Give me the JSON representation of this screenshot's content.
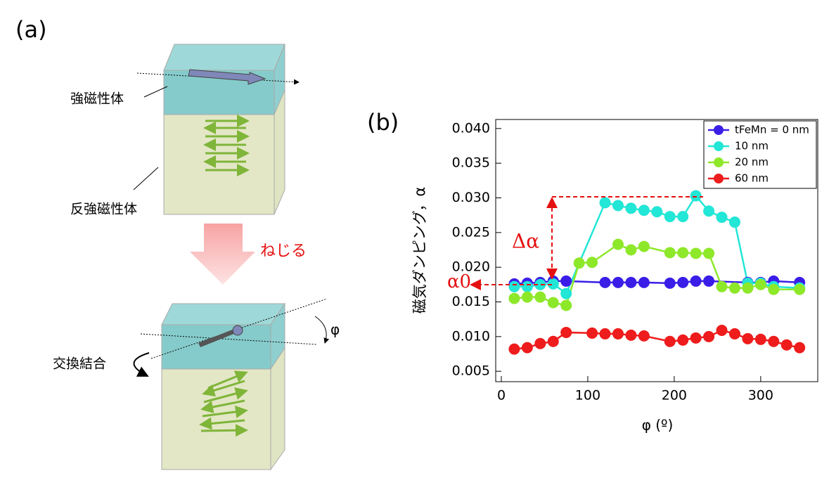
{
  "panel_a": {
    "label": "(a)",
    "ferromagnet": "強磁性体",
    "antiferromagnet": "反強磁性体",
    "twist": "ねじる",
    "exchange_coupling": "交換結合",
    "angle": "φ"
  },
  "chart_data": {
    "type": "line",
    "panel_label": "(b)",
    "xlabel": "φ (º)",
    "ylabel": "磁気ダンピング，α",
    "annotations": [
      "Δα",
      "α0"
    ],
    "legend": "upper right",
    "grid": false,
    "xlim": [
      -6.5,
      366
    ],
    "xticks": [
      0,
      100,
      200,
      300
    ],
    "ylim": [
      0.0035,
      0.0413
    ],
    "yticks": [
      0.005,
      {
        "value": 0.01,
        "label": "0.010"
      },
      0.015,
      {
        "value": 0.02,
        "label": "0.020"
      },
      0.025,
      {
        "value": 0.03,
        "label": "0.030"
      },
      0.035,
      {
        "value": 0.04,
        "label": "0.040"
      }
    ],
    "series": [
      {
        "name": "tFeMn = 0 nm",
        "color": "#3a1ee8",
        "x": [
          15,
          30,
          45,
          60,
          75,
          120,
          135,
          150,
          165,
          195,
          210,
          225,
          240,
          285,
          300,
          315,
          345
        ],
        "values": [
          0.0176,
          0.0177,
          0.0178,
          0.018,
          0.018,
          0.0178,
          0.0178,
          0.0178,
          0.0178,
          0.0177,
          0.0178,
          0.018,
          0.018,
          0.0178,
          0.0178,
          0.018,
          0.0178
        ]
      },
      {
        "name": "10 nm",
        "color": "#22e6d6",
        "x": [
          15,
          30,
          45,
          60,
          75,
          120,
          135,
          150,
          165,
          180,
          195,
          210,
          225,
          240,
          255,
          270,
          285,
          300,
          315,
          345
        ],
        "values": [
          0.0172,
          0.0172,
          0.0175,
          0.0176,
          0.0162,
          0.0293,
          0.0289,
          0.0285,
          0.0282,
          0.028,
          0.0273,
          0.0273,
          0.0303,
          0.0281,
          0.0272,
          0.0265,
          0.0177,
          0.0177,
          0.0172,
          0.017
        ]
      },
      {
        "name": "20 nm",
        "color": "#8ee82a",
        "x": [
          15,
          30,
          45,
          60,
          75,
          90,
          105,
          135,
          150,
          165,
          195,
          210,
          225,
          240,
          255,
          270,
          285,
          300,
          315,
          345
        ],
        "values": [
          0.0155,
          0.0157,
          0.0157,
          0.0149,
          0.0145,
          0.0206,
          0.0207,
          0.0233,
          0.0225,
          0.023,
          0.0221,
          0.0221,
          0.022,
          0.022,
          0.0172,
          0.017,
          0.017,
          0.0175,
          0.0168,
          0.0168
        ]
      },
      {
        "name": "60 nm",
        "color": "#ee1c1c",
        "x": [
          15,
          30,
          45,
          60,
          75,
          105,
          120,
          135,
          150,
          165,
          195,
          210,
          225,
          240,
          255,
          270,
          285,
          300,
          315,
          330,
          345
        ],
        "values": [
          0.0082,
          0.0084,
          0.009,
          0.0093,
          0.0106,
          0.0105,
          0.0104,
          0.0104,
          0.0102,
          0.0101,
          0.0093,
          0.0095,
          0.0098,
          0.01,
          0.0109,
          0.0104,
          0.0097,
          0.0096,
          0.0093,
          0.0088,
          0.0084
        ]
      }
    ]
  }
}
